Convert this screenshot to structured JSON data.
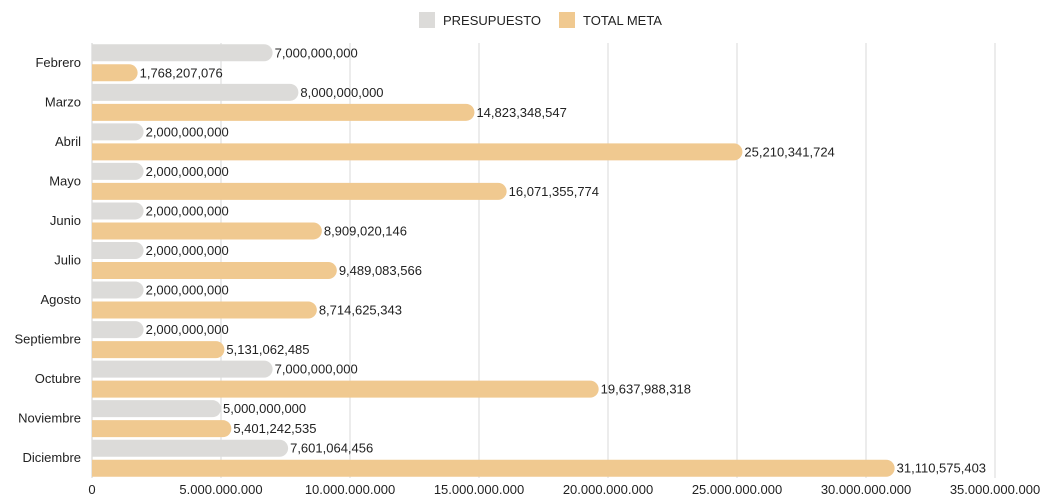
{
  "chart_data": {
    "type": "bar",
    "orientation": "horizontal",
    "categories": [
      "Febrero",
      "Marzo",
      "Abril",
      "Mayo",
      "Junio",
      "Julio",
      "Agosto",
      "Septiembre",
      "Octubre",
      "Noviembre",
      "Diciembre"
    ],
    "series": [
      {
        "name": "PRESUPUESTO",
        "color": "#dcdbd9",
        "values": [
          7000000000,
          8000000000,
          2000000000,
          2000000000,
          2000000000,
          2000000000,
          2000000000,
          2000000000,
          7000000000,
          5000000000,
          7601064456
        ],
        "labels": [
          "7,000,000,000",
          "8,000,000,000",
          "2,000,000,000",
          "2,000,000,000",
          "2,000,000,000",
          "2,000,000,000",
          "2,000,000,000",
          "2,000,000,000",
          "7,000,000,000",
          "5,000,000,000",
          "7,601,064,456"
        ]
      },
      {
        "name": "TOTAL META",
        "color": "#f0c990",
        "values": [
          1768207076,
          14823348547,
          25210341724,
          16071355774,
          8909020146,
          9489083566,
          8714625343,
          5131062485,
          19637988318,
          5401242535,
          31110575403
        ],
        "labels": [
          "1,768,207,076",
          "14,823,348,547",
          "25,210,341,724",
          "16,071,355,774",
          "8,909,020,146",
          "9,489,083,566",
          "8,714,625,343",
          "5,131,062,485",
          "19,637,988,318",
          "5,401,242,535",
          "31,110,575,403"
        ]
      }
    ],
    "xlim": [
      0,
      35000000000
    ],
    "x_ticks": [
      0,
      5000000000,
      10000000000,
      15000000000,
      20000000000,
      25000000000,
      30000000000,
      35000000000
    ],
    "x_tick_labels": [
      "0",
      "5.000.000.000",
      "10.000.000.000",
      "15.000.000.000",
      "20.000.000.000",
      "25.000.000.000",
      "30.000.000.000",
      "35.000.000.000"
    ],
    "grid": true,
    "legend_position": "top"
  }
}
